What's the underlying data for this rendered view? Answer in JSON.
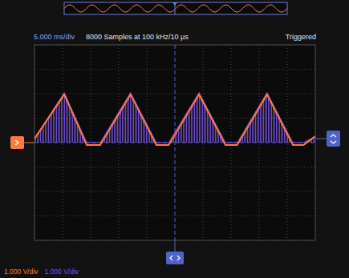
{
  "chart_data": {
    "type": "line",
    "title": "8000 Samples at 100 kHz/10 µs",
    "xlabel": "5.000 ms/div",
    "annotations": [
      "Triggered"
    ],
    "x": [
      -25,
      -19.7,
      -15.7,
      -13.3,
      -7.9,
      -3.3,
      -1.1,
      4.3,
      9,
      11.1,
      16.4,
      21,
      22.9,
      25
    ],
    "series": [
      {
        "name": "1.000 V/div",
        "color": "#ff7a3c",
        "type": "line",
        "values": [
          0.16,
          1.97,
          -0.1,
          -0.1,
          1.97,
          -0.1,
          -0.1,
          1.97,
          -0.1,
          -0.1,
          1.97,
          -0.1,
          -0.1,
          0.26
        ]
      },
      {
        "name": "1.000 V/div",
        "color": "#7d52e8",
        "type": "area",
        "values": [
          0.16,
          2.05,
          0,
          0,
          2.05,
          0,
          0,
          2.05,
          0,
          0,
          2.05,
          0,
          0,
          0.26
        ]
      }
    ],
    "xlim": [
      -25,
      25
    ],
    "ylim": [
      -4,
      4
    ],
    "xticks": [
      -25,
      -20,
      -15,
      -10,
      -5,
      0,
      5,
      10,
      15,
      20,
      25
    ],
    "yticks": [
      -4,
      -3,
      -2,
      -1,
      0,
      1,
      2,
      3,
      4
    ],
    "grid": true,
    "tick_labels": false,
    "legend": "bottom-left"
  }
}
